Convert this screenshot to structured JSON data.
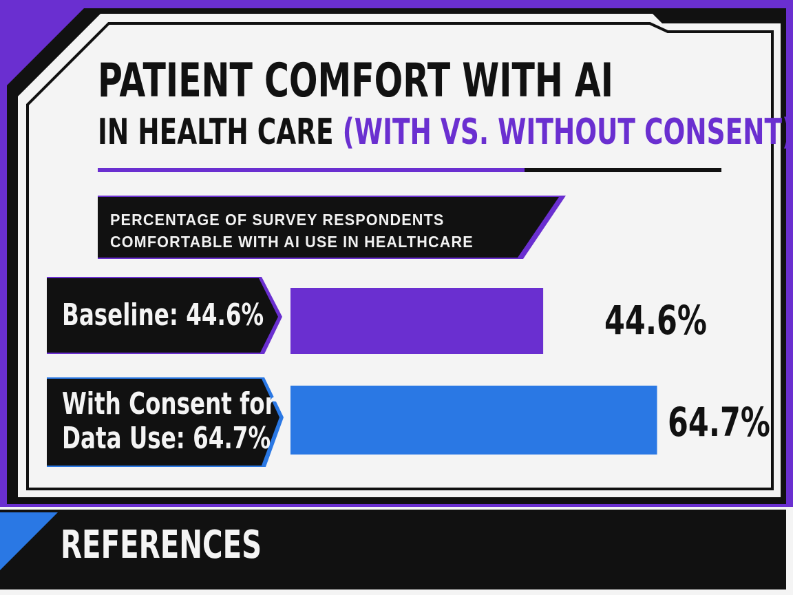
{
  "title": {
    "line1": "PATIENT COMFORT WITH AI",
    "line2_main": "IN HEALTH CARE",
    "line2_accent": "(WITH VS. WITHOUT CONSENT)"
  },
  "subtitle": {
    "line1": "PERCENTAGE OF SURVEY RESPONDENTS",
    "line2": "COMFORTABLE WITH AI USE IN HEALTHCARE"
  },
  "footer": {
    "title": "REFERENCES"
  },
  "colors": {
    "purple": "#6a2fd0",
    "blue": "#2a78e4",
    "black": "#111111",
    "background": "#f4f4f4"
  },
  "chart_data": {
    "type": "bar",
    "orientation": "horizontal",
    "title": "PATIENT COMFORT WITH AI IN HEALTH CARE (WITH VS. WITHOUT CONSENT)",
    "subtitle": "PERCENTAGE OF SURVEY RESPONDENTS COMFORTABLE WITH AI USE IN HEALTHCARE",
    "categories": [
      [
        "Baseline: 44.6%"
      ],
      [
        "With Consent for",
        "Data Use: 64.7%"
      ]
    ],
    "values": [
      44.6,
      64.7
    ],
    "value_labels": [
      "44.6%",
      "64.7%"
    ],
    "bar_colors": [
      "#6a2fd0",
      "#2a78e4"
    ],
    "xlim": [
      0,
      100
    ],
    "grid": false,
    "legend": "none"
  }
}
